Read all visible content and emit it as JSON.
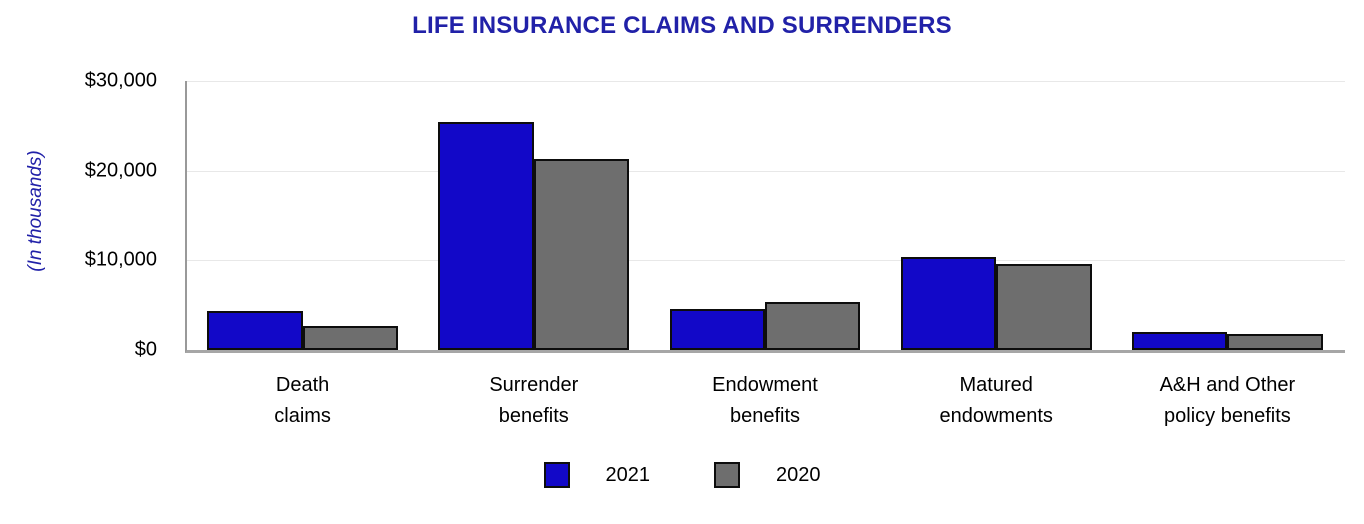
{
  "title": "LIFE INSURANCE CLAIMS AND SURRENDERS",
  "chart_data": {
    "type": "bar",
    "title": "LIFE INSURANCE CLAIMS AND SURRENDERS",
    "xlabel": "",
    "ylabel": "(In thousands)",
    "categories": [
      "Death claims",
      "Surrender benefits",
      "Endowment benefits",
      "Matured endowments",
      "A&H and Other policy benefits"
    ],
    "category_lines": [
      [
        "Death",
        "claims"
      ],
      [
        "Surrender",
        "benefits"
      ],
      [
        "Endowment",
        "benefits"
      ],
      [
        "Matured",
        "endowments"
      ],
      [
        "A&H and Other",
        "policy benefits"
      ]
    ],
    "series": [
      {
        "name": "2021",
        "color": "#1208C8",
        "values": [
          4400,
          25400,
          4600,
          10400,
          2000
        ]
      },
      {
        "name": "2020",
        "color": "#6E6E6E",
        "values": [
          2700,
          21300,
          5300,
          9600,
          1800
        ]
      }
    ],
    "ylim": [
      0,
      30000
    ],
    "yticks": [
      {
        "value": 0,
        "label": "$0"
      },
      {
        "value": 10000,
        "label": "$10,000"
      },
      {
        "value": 20000,
        "label": "$20,000"
      },
      {
        "value": 30000,
        "label": "$30,000"
      }
    ],
    "grid": "horizontal",
    "legend_position": "bottom"
  },
  "colors": {
    "title_text": "#2121A8",
    "axis_label_text": "#2121A8",
    "series_2021": "#1208C8",
    "series_2020": "#6E6E6E",
    "bar_border": "#0D0D0D",
    "gridline": "#E8E8E8",
    "axis_line": "#A6A6A6",
    "tick_text": "#000000"
  }
}
